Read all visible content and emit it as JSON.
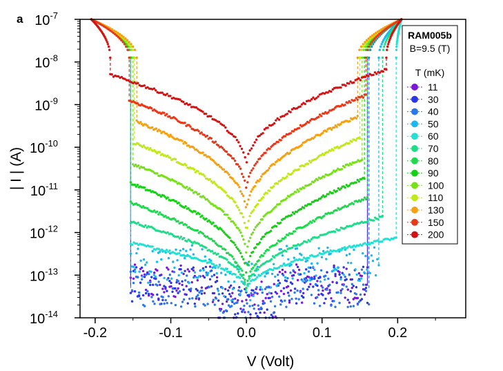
{
  "chart_data": {
    "type": "scatter",
    "panel_label": "a",
    "xlabel": "V (Volt)",
    "ylabel": "| I | (A)",
    "x_scale": "linear",
    "y_scale": "log",
    "xlim": [
      -0.22,
      0.29
    ],
    "ylim": [
      1e-14,
      1e-07
    ],
    "x_ticks": [
      -0.2,
      -0.1,
      0.0,
      0.1,
      0.2
    ],
    "x_tick_labels": [
      "-0.2",
      "-0.1",
      "0.0",
      "0.1",
      "0.2"
    ],
    "y_ticks": [
      1e-14,
      1e-13,
      1e-12,
      1e-11,
      1e-10,
      1e-09,
      1e-08,
      1e-07
    ],
    "y_tick_labels": [
      {
        "base": "10",
        "exp": "-14"
      },
      {
        "base": "10",
        "exp": "-13"
      },
      {
        "base": "10",
        "exp": "-12"
      },
      {
        "base": "10",
        "exp": "-11"
      },
      {
        "base": "10",
        "exp": "-10"
      },
      {
        "base": "10",
        "exp": "-9"
      },
      {
        "base": "10",
        "exp": "-8"
      },
      {
        "base": "10",
        "exp": "-7"
      }
    ],
    "grid": false,
    "legend": {
      "placement": "top-right",
      "sample": "RAM005b",
      "field": "B=9.5 (T)",
      "title": "T (mK)"
    },
    "series": [
      {
        "name": "11",
        "color": "#7a18d8",
        "plateau_log": -13.2,
        "v_neg": -0.153,
        "v_pos": 0.16
      },
      {
        "name": "30",
        "color": "#2a36e8",
        "plateau_log": -13.25,
        "v_neg": -0.153,
        "v_pos": 0.16
      },
      {
        "name": "40",
        "color": "#2a78ee",
        "plateau_log": -13.3,
        "v_neg": -0.153,
        "v_pos": 0.162
      },
      {
        "name": "50",
        "color": "#1ab8f0",
        "plateau_log": -12.75,
        "v_neg": -0.153,
        "v_pos": 0.175
      },
      {
        "name": "60",
        "color": "#22e0d2",
        "plateau_log": -12.25,
        "v_neg": -0.153,
        "v_pos": 0.198
      },
      {
        "name": "70",
        "color": "#20dc8a",
        "plateau_log": -11.75,
        "v_neg": -0.153,
        "v_pos": 0.18
      },
      {
        "name": "80",
        "color": "#20d850",
        "plateau_log": -11.3,
        "v_neg": -0.153,
        "v_pos": 0.16
      },
      {
        "name": "90",
        "color": "#16d016",
        "plateau_log": -10.85,
        "v_neg": -0.153,
        "v_pos": 0.156
      },
      {
        "name": "100",
        "color": "#78e01a",
        "plateau_log": -10.4,
        "v_neg": -0.15,
        "v_pos": 0.153
      },
      {
        "name": "110",
        "color": "#c0e81a",
        "plateau_log": -9.9,
        "v_neg": -0.148,
        "v_pos": 0.15
      },
      {
        "name": "130",
        "color": "#f5a010",
        "plateau_log": -9.4,
        "v_neg": -0.145,
        "v_pos": 0.147
      },
      {
        "name": "150",
        "color": "#e83818",
        "plateau_log": -8.9,
        "v_neg": -0.155,
        "v_pos": 0.158
      },
      {
        "name": "200",
        "color": "#d41212",
        "plateau_log": -8.3,
        "v_neg": -0.18,
        "v_pos": 0.185
      }
    ]
  }
}
